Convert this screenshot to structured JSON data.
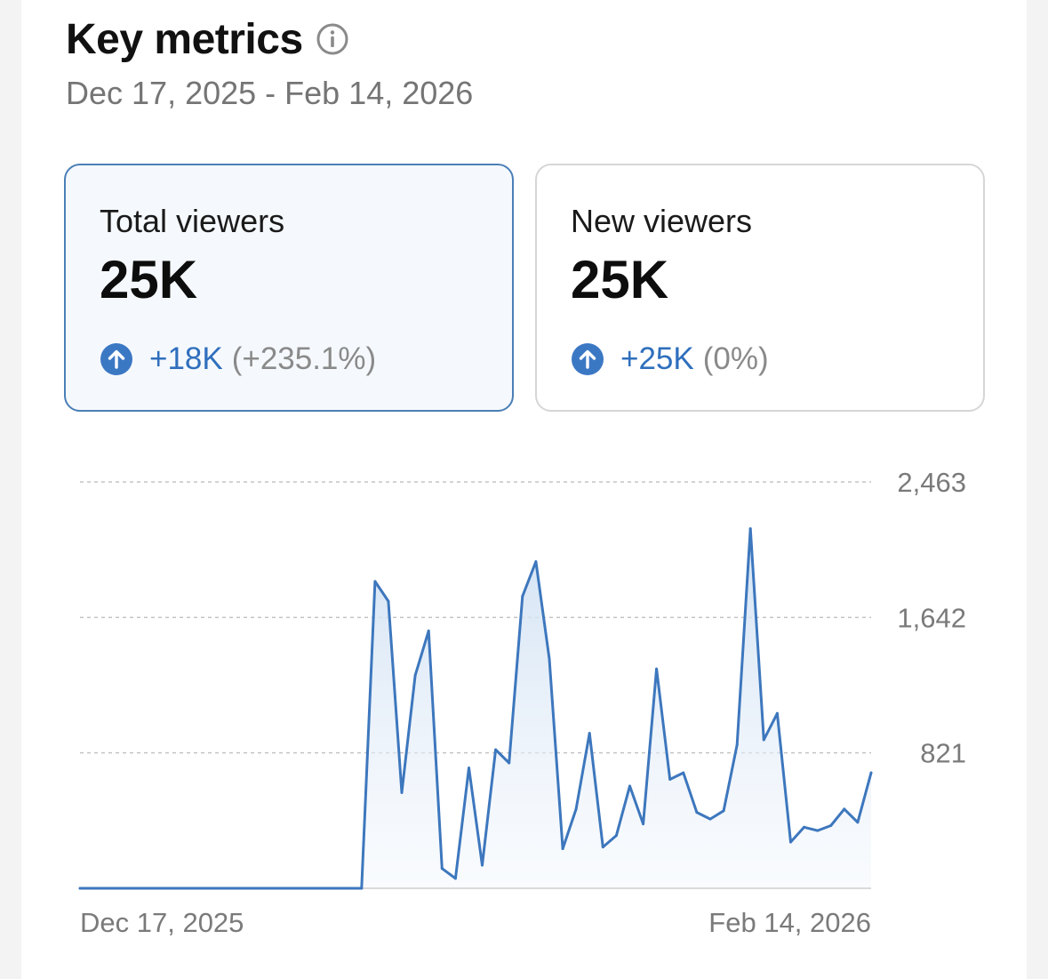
{
  "header": {
    "title": "Key metrics",
    "date_range": "Dec 17, 2025 - Feb 14, 2026"
  },
  "cards": [
    {
      "label": "Total viewers",
      "value": "25K",
      "delta": "+18K",
      "pct": "(+235.1%)",
      "selected": true
    },
    {
      "label": "New viewers",
      "value": "25K",
      "delta": "+25K",
      "pct": "(0%)",
      "selected": false
    }
  ],
  "colors": {
    "accent": "#3b78c4",
    "line": "#3d77bd",
    "delta_text": "#2f6fbd",
    "selected_border": "#4a7fb6"
  },
  "chart_data": {
    "type": "area",
    "series": [
      {
        "name": "Total viewers",
        "values": [
          0,
          0,
          0,
          0,
          0,
          0,
          0,
          0,
          0,
          0,
          0,
          0,
          0,
          0,
          0,
          0,
          0,
          0,
          0,
          0,
          0,
          0,
          1860,
          1740,
          580,
          1290,
          1560,
          120,
          60,
          730,
          140,
          840,
          760,
          1770,
          1980,
          1390,
          240,
          480,
          940,
          250,
          320,
          620,
          390,
          1330,
          660,
          700,
          460,
          420,
          470,
          870,
          2180,
          900,
          1060,
          280,
          370,
          350,
          380,
          480,
          400,
          700
        ]
      }
    ],
    "x_labels": [
      "Dec 17, 2025",
      "Feb 14, 2026"
    ],
    "y_ticks": [
      {
        "value": 2463,
        "label": "2,463"
      },
      {
        "value": 1642,
        "label": "1,642"
      },
      {
        "value": 821,
        "label": "821"
      }
    ],
    "ylim": [
      0,
      2463
    ],
    "grid": true
  }
}
